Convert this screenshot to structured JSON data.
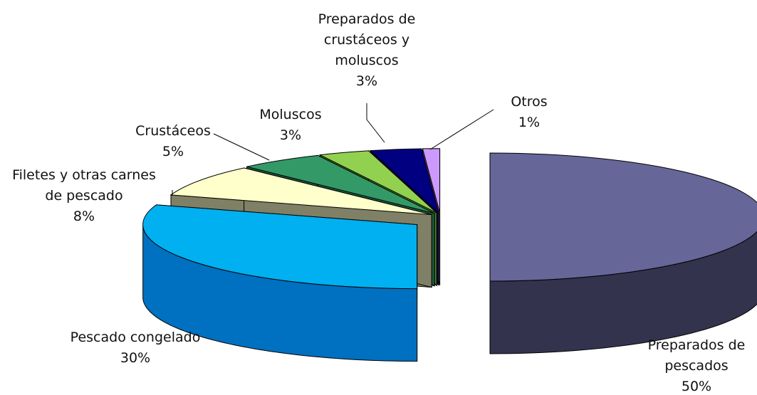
{
  "chart_data": {
    "type": "pie",
    "style": "3d-exploded",
    "legend": "none",
    "slices": [
      {
        "label": "Preparados de pescados",
        "value": 50,
        "value_label": "50%",
        "color": "#666699",
        "side_color": "#33334d"
      },
      {
        "label": "Pescado congelado",
        "value": 30,
        "value_label": "30%",
        "color": "#00b0f0",
        "side_color": "#0070c0"
      },
      {
        "label": "Filetes y otras carnes de pescado",
        "value": 8,
        "value_label": "8%",
        "color": "#ffffcc",
        "side_color": "#808066"
      },
      {
        "label": "Crustáceos",
        "value": 5,
        "value_label": "5%",
        "color": "#339966",
        "side_color": "#1e5c3d"
      },
      {
        "label": "Moluscos",
        "value": 3,
        "value_label": "3%",
        "color": "#92d050",
        "side_color": "#4d7a28"
      },
      {
        "label": "Preparados de crustáceos y moluscos",
        "value": 3,
        "value_label": "3%",
        "color": "#000080",
        "side_color": "#00004d"
      },
      {
        "label": "Otros",
        "value": 1,
        "value_label": "1%",
        "color": "#cc99ff",
        "side_color": "#6b4d99"
      }
    ]
  }
}
